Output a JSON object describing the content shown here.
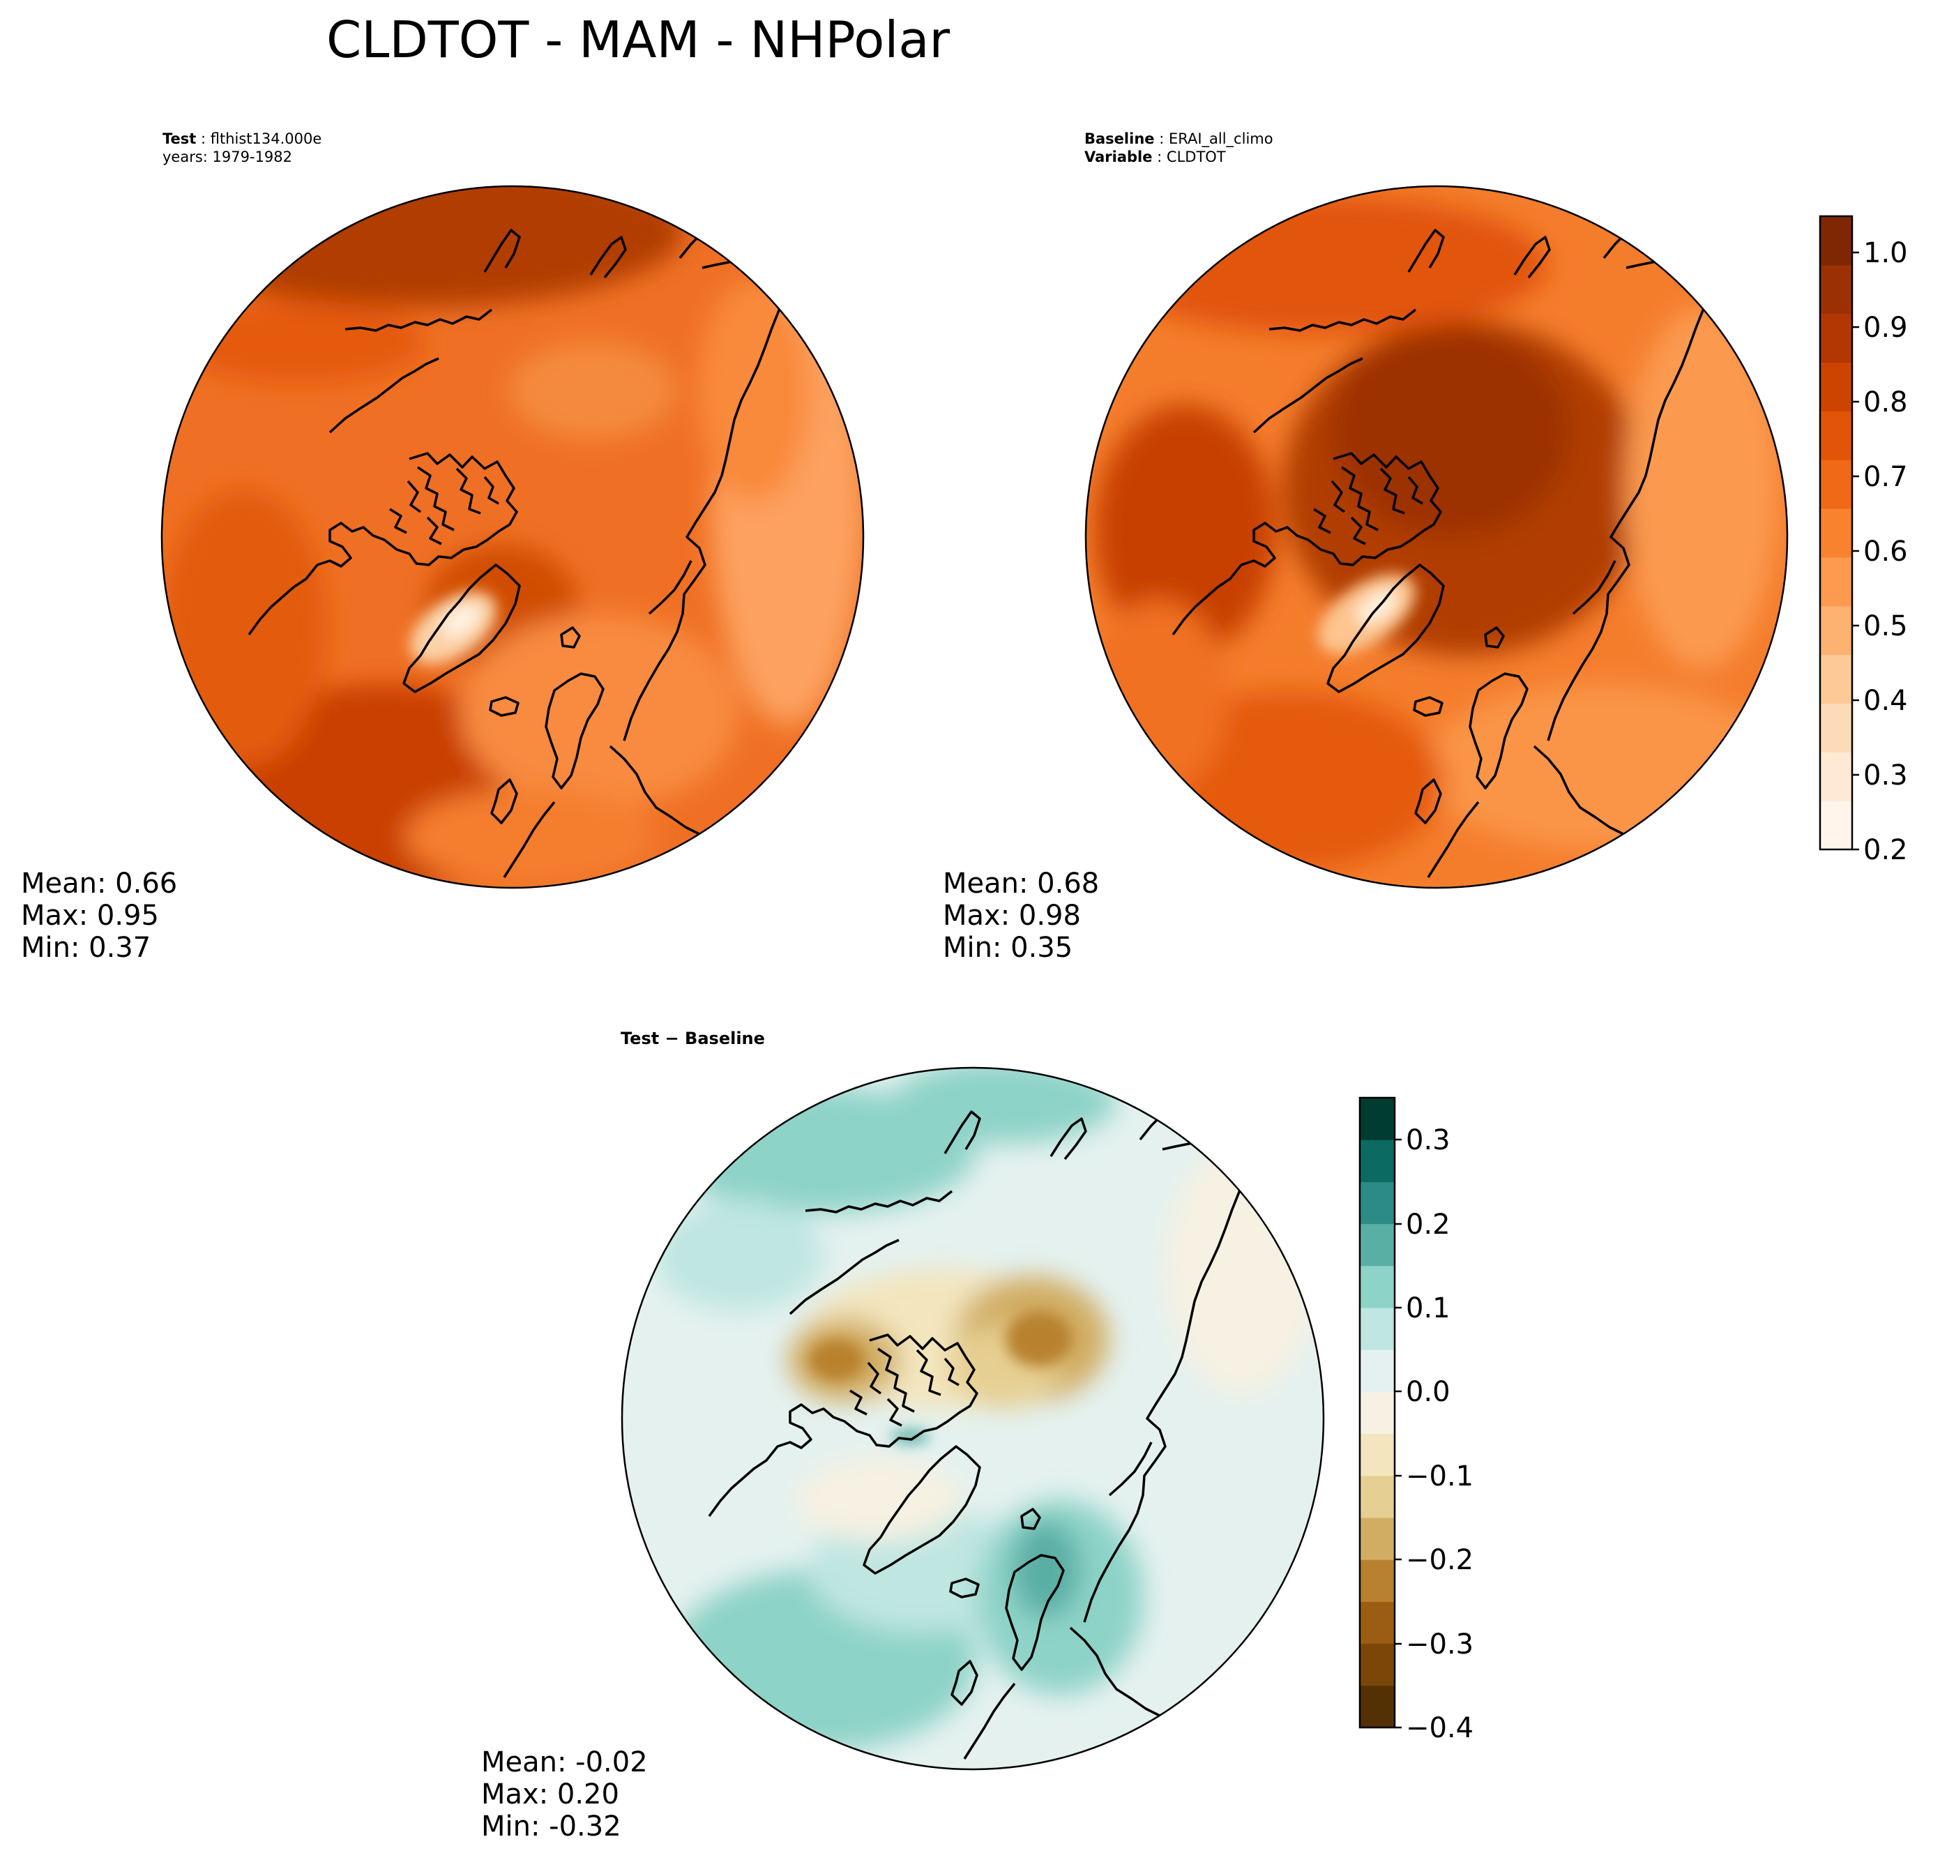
{
  "title": "CLDTOT - MAM - NHPolar",
  "panels": {
    "test": {
      "label_key": "Test",
      "label_value": "flthist134.000e",
      "years": "years: 1979-1982",
      "stats": {
        "mean": "Mean:  0.66",
        "max": "Max:  0.95",
        "min": "Min:  0.37"
      }
    },
    "baseline": {
      "label_key": "Baseline",
      "label_value": "ERAI_all_climo",
      "variable_key": "Variable",
      "variable_value": "CLDTOT",
      "stats": {
        "mean": "Mean:  0.68",
        "max": "Max:  0.98",
        "min": "Min:  0.35"
      }
    },
    "diff": {
      "label": "Test − Baseline",
      "stats": {
        "mean": "Mean: -0.02",
        "max": "Max:  0.20",
        "min": "Min: -0.32"
      }
    }
  },
  "chart_data": [
    {
      "type": "heatmap",
      "title": "Test",
      "projection": "north polar stereographic",
      "variable": "CLDTOT",
      "mean": 0.66,
      "max": 0.95,
      "min": 0.37,
      "colormap": "Oranges",
      "levels": [
        0.2,
        1.05
      ]
    },
    {
      "type": "heatmap",
      "title": "Baseline",
      "projection": "north polar stereographic",
      "variable": "CLDTOT",
      "mean": 0.68,
      "max": 0.98,
      "min": 0.35,
      "colormap": "Oranges",
      "levels": [
        0.2,
        1.05
      ]
    },
    {
      "type": "heatmap",
      "title": "Test − Baseline",
      "projection": "north polar stereographic",
      "variable": "CLDTOT",
      "mean": -0.02,
      "max": 0.2,
      "min": -0.32,
      "colormap": "BrBG",
      "levels": [
        -0.4,
        0.35
      ]
    }
  ],
  "colorbar_main": {
    "ticks": [
      "0.2",
      "0.3",
      "0.4",
      "0.5",
      "0.6",
      "0.7",
      "0.8",
      "0.9",
      "1.0"
    ],
    "colors": [
      "#fff5eb",
      "#fee9d4",
      "#fddbb8",
      "#fdc997",
      "#fdb271",
      "#fd9a4f",
      "#f9822f",
      "#f06917",
      "#e25407",
      "#cd4401",
      "#b33702",
      "#9b3103",
      "#7f2704"
    ]
  },
  "colorbar_diff": {
    "ticks": [
      "0.3",
      "0.2",
      "0.1",
      "0.0",
      "−0.1",
      "−0.2",
      "−0.3",
      "−0.4"
    ],
    "colors": [
      "#543005",
      "#7a4709",
      "#9b5d13",
      "#b8812f",
      "#d1ad64",
      "#e6cf92",
      "#f3e5bd",
      "#f6f1e2",
      "#e4f1f0",
      "#bfe6e1",
      "#8ed3c8",
      "#5aafa5",
      "#2c8b84",
      "#0b6a62",
      "#003c30"
    ]
  },
  "colors": {
    "land_outline": "#000000",
    "main_base": "#ec6a1f",
    "diff_base": "#cfeae6"
  }
}
